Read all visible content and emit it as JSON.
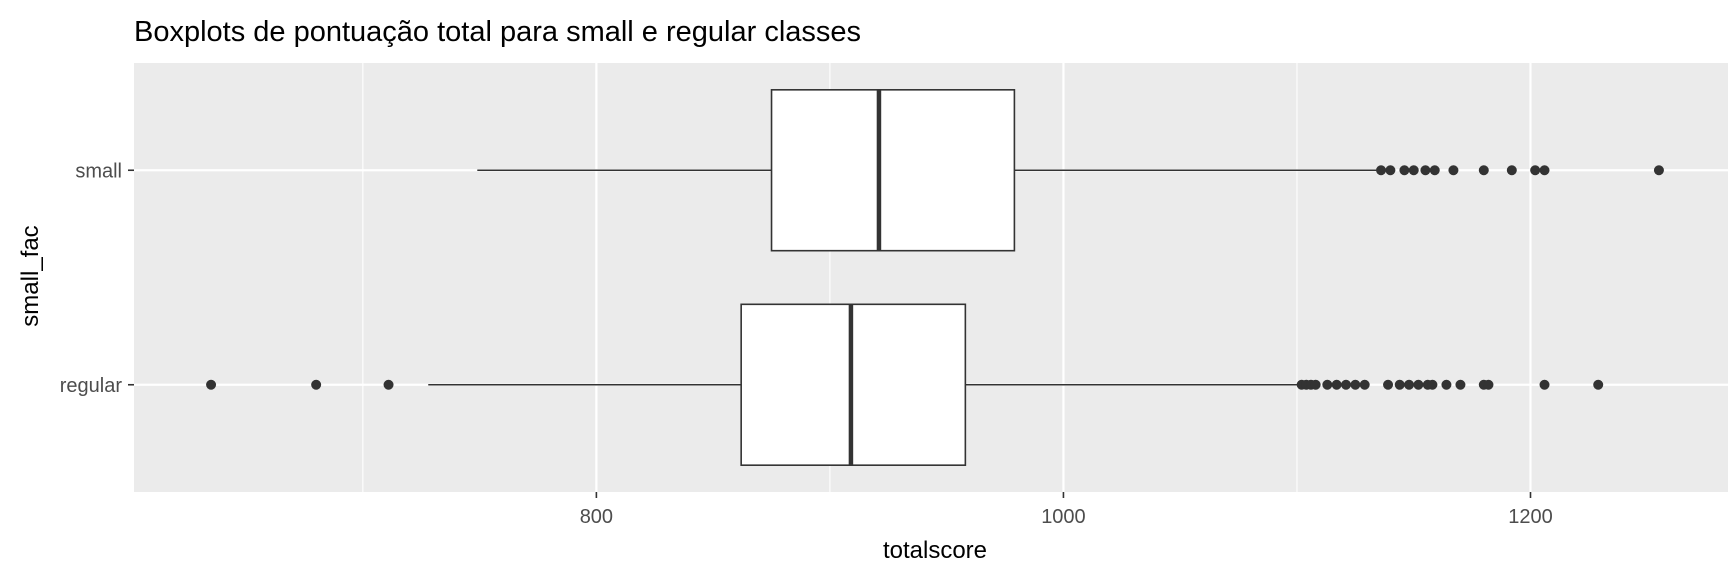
{
  "chart_data": {
    "type": "boxplot",
    "title": "Boxplots de pontuação total para small e regular classes",
    "xlabel": "totalscore",
    "ylabel": "small_fac",
    "orientation": "horizontal",
    "xlim": [
      602,
      1288
    ],
    "x_ticks": [
      800,
      1000,
      1200
    ],
    "categories": [
      "regular",
      "small"
    ],
    "grid": true,
    "colors": {
      "panel_background": "#ebebeb",
      "grid_line": "#ffffff",
      "box_fill": "#ffffff",
      "box_line": "#333333",
      "outlier": "#333333",
      "tick_text": "#4d4d4d"
    },
    "boxes": [
      {
        "category": "regular",
        "whisker_low": 728,
        "q1": 862,
        "median": 909,
        "q3": 958,
        "whisker_high": 1101,
        "outliers": [
          635,
          680,
          711,
          1102,
          1104,
          1106,
          1108,
          1113,
          1117,
          1121,
          1125,
          1129,
          1139,
          1144,
          1148,
          1152,
          1156,
          1158,
          1164,
          1170,
          1180,
          1182,
          1206,
          1229
        ]
      },
      {
        "category": "small",
        "whisker_low": 749,
        "q1": 875,
        "median": 921,
        "q3": 979,
        "whisker_high": 1134,
        "outliers": [
          1136,
          1140,
          1146,
          1150,
          1155,
          1159,
          1167,
          1180,
          1192,
          1202,
          1206,
          1255
        ]
      }
    ]
  }
}
